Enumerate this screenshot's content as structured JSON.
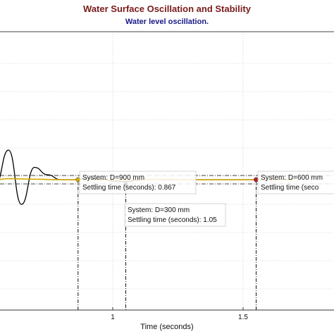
{
  "chart_data": {
    "type": "line",
    "title": "Water Surface Oscillation and Stability",
    "subtitle": "Water level oscillation.",
    "xlabel": "Time (seconds)",
    "ylabel": "",
    "x_ticks": [
      1,
      1.5
    ],
    "grid": true,
    "series": [
      {
        "color": "#000000",
        "x": [
          0.55,
          0.6,
          0.65,
          0.7,
          0.75,
          0.8,
          0.85,
          0.9,
          0.95,
          1.0,
          1.05,
          1.1,
          1.15,
          1.2,
          1.25,
          1.3,
          1.35,
          1.4,
          1.45,
          1.5,
          1.55,
          1.6,
          1.65,
          1.7
        ],
        "y": [
          0.99,
          1.06,
          0.95,
          1.025,
          1.01,
          1.0,
          1.0,
          1.003,
          1.002,
          0.997,
          0.996,
          0.999,
          1.001,
          1.0,
          1.0,
          1.0,
          1.0,
          1.0,
          1.0,
          1.0,
          1.0,
          1.0,
          1.0,
          1.0
        ]
      },
      {
        "color": "#d4a800",
        "x": [
          0.55,
          0.6,
          0.7,
          0.8,
          0.9,
          1.0,
          1.1,
          1.2,
          1.3,
          1.4,
          1.5,
          1.55,
          1.6,
          1.7
        ],
        "y": [
          1.0,
          1.002,
          1.001,
          1.0,
          1.0,
          0.999,
          1.0,
          1.001,
          1.0,
          1.0,
          1.0,
          1.0,
          1.001,
          1.0
        ]
      }
    ],
    "reference_lines": {
      "upper": 1.02,
      "lower": 0.98
    },
    "annotations": [
      {
        "marker_color": "#d4a800",
        "x": 0.867,
        "y": 1.0,
        "line1": "System: D=900 mm",
        "line2": "Settling time (seconds): 0.867"
      },
      {
        "marker_color": "#1a2a6a",
        "x": 1.05,
        "y": 0.99,
        "line1": "System: D=300 mm",
        "line2": "Settling time (seconds): 1.05"
      },
      {
        "marker_color": "#b02020",
        "x": 1.55,
        "y": 1.0,
        "line1": "System: D=600 mm",
        "line2": "Settling time (seco"
      }
    ]
  }
}
